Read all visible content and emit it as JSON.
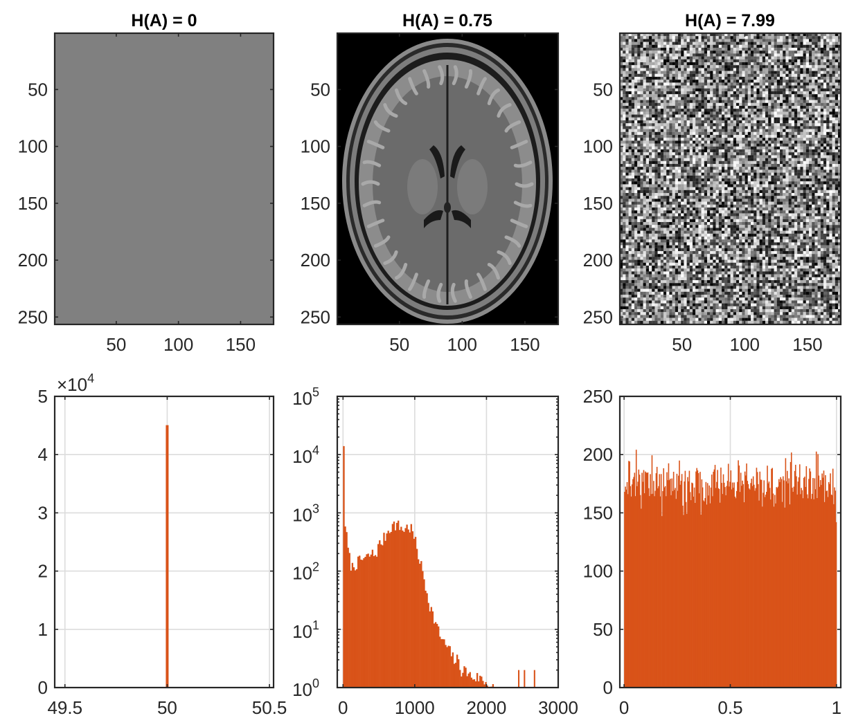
{
  "figure": {
    "colors": {
      "bar": "#D95319",
      "axis": "#262626",
      "grid": "#dcdcdc",
      "uniform_gray": "#808080",
      "mri_background": "#000000"
    }
  },
  "chart_data": [
    {
      "type": "image",
      "title": "H(A) = 0",
      "image": "uniform-gray",
      "xlim": [
        0.5,
        176.5
      ],
      "ylim": [
        0.5,
        256.5
      ],
      "xticks": [
        50,
        100,
        150
      ],
      "xticklabels": [
        "50",
        "100",
        "150"
      ],
      "yticks": [
        50,
        100,
        150,
        200,
        250
      ],
      "yticklabels": [
        "50",
        "100",
        "150",
        "200",
        "250"
      ],
      "y_reversed": true
    },
    {
      "type": "image",
      "title": "H(A) = 0.75",
      "image": "mri-axial-brain-slice",
      "xlim": [
        0.5,
        176.5
      ],
      "ylim": [
        0.5,
        256.5
      ],
      "xticks": [
        50,
        100,
        150
      ],
      "xticklabels": [
        "50",
        "100",
        "150"
      ],
      "yticks": [
        50,
        100,
        150,
        200,
        250
      ],
      "yticklabels": [
        "50",
        "100",
        "150",
        "200",
        "250"
      ],
      "y_reversed": true
    },
    {
      "type": "image",
      "title": "H(A) = 7.99",
      "image": "uniform-random-noise",
      "xlim": [
        0.5,
        176.5
      ],
      "ylim": [
        0.5,
        256.5
      ],
      "xticks": [
        50,
        100,
        150
      ],
      "xticklabels": [
        "50",
        "100",
        "150"
      ],
      "yticks": [
        50,
        100,
        150,
        200,
        250
      ],
      "yticklabels": [
        "50",
        "100",
        "150",
        "200",
        "250"
      ],
      "y_reversed": true
    },
    {
      "type": "bar",
      "title": "",
      "xlim": [
        49.45,
        50.52
      ],
      "ylim": [
        0,
        50000
      ],
      "xticks": [
        49.5,
        50,
        50.5
      ],
      "xticklabels": [
        "49.5",
        "50",
        "50.5"
      ],
      "yticks": [
        0,
        10000,
        20000,
        30000,
        40000,
        50000
      ],
      "yticklabels": [
        "0",
        "1",
        "2",
        "3",
        "4",
        "5"
      ],
      "exponent_label": "×10",
      "exponent_power": "4",
      "grid": true,
      "bars": [
        {
          "x": 50,
          "value": 45056
        }
      ]
    },
    {
      "type": "bar",
      "title": "",
      "yscale": "log",
      "xlim": [
        -80,
        3000
      ],
      "ylim": [
        1,
        100000
      ],
      "xticks": [
        0,
        1000,
        2000,
        3000
      ],
      "xticklabels": [
        "0",
        "1000",
        "2000",
        "3000"
      ],
      "yticks": [
        1,
        10,
        100,
        1000,
        10000,
        100000
      ],
      "yticklabels": [
        {
          "base": "10",
          "exp": "0"
        },
        {
          "base": "10",
          "exp": "1"
        },
        {
          "base": "10",
          "exp": "2"
        },
        {
          "base": "10",
          "exp": "3"
        },
        {
          "base": "10",
          "exp": "4"
        },
        {
          "base": "10",
          "exp": "5"
        }
      ],
      "grid": true,
      "histogram": {
        "bin_edges_start": 0,
        "bin_width": 20,
        "approx_counts_keypoints": [
          [
            0,
            14000
          ],
          [
            20,
            900
          ],
          [
            40,
            500
          ],
          [
            60,
            300
          ],
          [
            80,
            190
          ],
          [
            100,
            150
          ],
          [
            120,
            115
          ],
          [
            140,
            120
          ],
          [
            160,
            130
          ],
          [
            200,
            140
          ],
          [
            250,
            155
          ],
          [
            300,
            165
          ],
          [
            350,
            175
          ],
          [
            400,
            200
          ],
          [
            450,
            190
          ],
          [
            500,
            280
          ],
          [
            550,
            330
          ],
          [
            600,
            430
          ],
          [
            650,
            560
          ],
          [
            700,
            620
          ],
          [
            750,
            640
          ],
          [
            800,
            560
          ],
          [
            850,
            520
          ],
          [
            900,
            580
          ],
          [
            950,
            540
          ],
          [
            1000,
            350
          ],
          [
            1050,
            190
          ],
          [
            1100,
            110
          ],
          [
            1150,
            55
          ],
          [
            1200,
            30
          ],
          [
            1250,
            18
          ],
          [
            1300,
            12
          ],
          [
            1350,
            8
          ],
          [
            1400,
            6
          ],
          [
            1450,
            5
          ],
          [
            1500,
            4
          ],
          [
            1550,
            3
          ],
          [
            1600,
            3
          ],
          [
            1650,
            2
          ],
          [
            1700,
            2
          ],
          [
            1800,
            1.5
          ],
          [
            1900,
            1.5
          ],
          [
            2000,
            1.2
          ],
          [
            2100,
            1
          ]
        ],
        "sparse_bins": [
          [
            2440,
            2
          ],
          [
            2520,
            2
          ],
          [
            2660,
            2
          ]
        ]
      }
    },
    {
      "type": "bar",
      "title": "",
      "xlim": [
        -0.02,
        1.02
      ],
      "ylim": [
        0,
        250
      ],
      "xticks": [
        0,
        0.5,
        1
      ],
      "xticklabels": [
        "0",
        "0.5",
        "1"
      ],
      "yticks": [
        0,
        50,
        100,
        150,
        200,
        250
      ],
      "yticklabels": [
        "0",
        "50",
        "100",
        "150",
        "200",
        "250"
      ],
      "grid": true,
      "histogram": {
        "bin_edges_start": 0,
        "bin_width": 0.00390625,
        "bins": 256,
        "mean_count": 176,
        "min_count": 142,
        "max_count": 213
      }
    }
  ]
}
